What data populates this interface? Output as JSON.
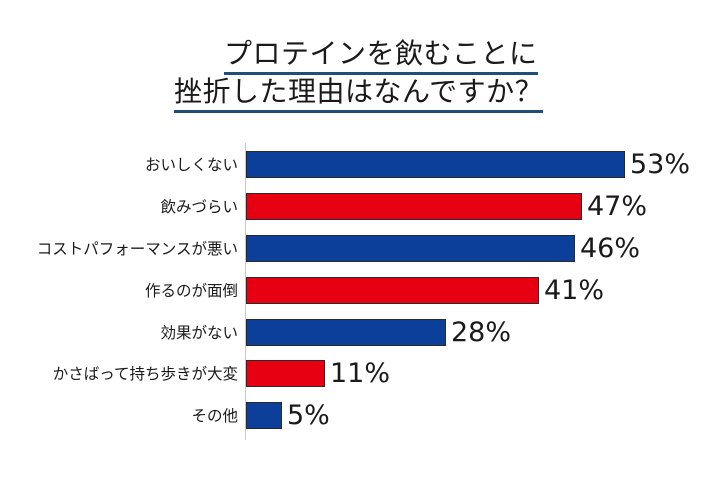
{
  "title": {
    "line1": "プロテインを飲むことに",
    "line2": "挫折した理由はなんですか？"
  },
  "colors": {
    "blue": "#0b3f9a",
    "red": "#e60012",
    "underline": "#1f4e79"
  },
  "chart_data": {
    "type": "bar",
    "orientation": "horizontal",
    "title": "プロテインを飲むことに挫折した理由はなんですか？",
    "xlabel": "",
    "ylabel": "",
    "unit": "%",
    "grid": false,
    "legend": null,
    "categories": [
      "おいしくない",
      "飲みづらい",
      "コストパフォーマンスが悪い",
      "作るのが面倒",
      "効果がない",
      "かさばって持ち歩きが大変",
      "その他"
    ],
    "values": [
      53,
      47,
      46,
      41,
      28,
      11,
      5
    ],
    "value_labels": [
      "53%",
      "47%",
      "46%",
      "41%",
      "28%",
      "11%",
      "5%"
    ],
    "bar_colors": [
      "#0b3f9a",
      "#e60012",
      "#0b3f9a",
      "#e60012",
      "#0b3f9a",
      "#e60012",
      "#0b3f9a"
    ],
    "xlim": [
      0,
      55
    ]
  }
}
